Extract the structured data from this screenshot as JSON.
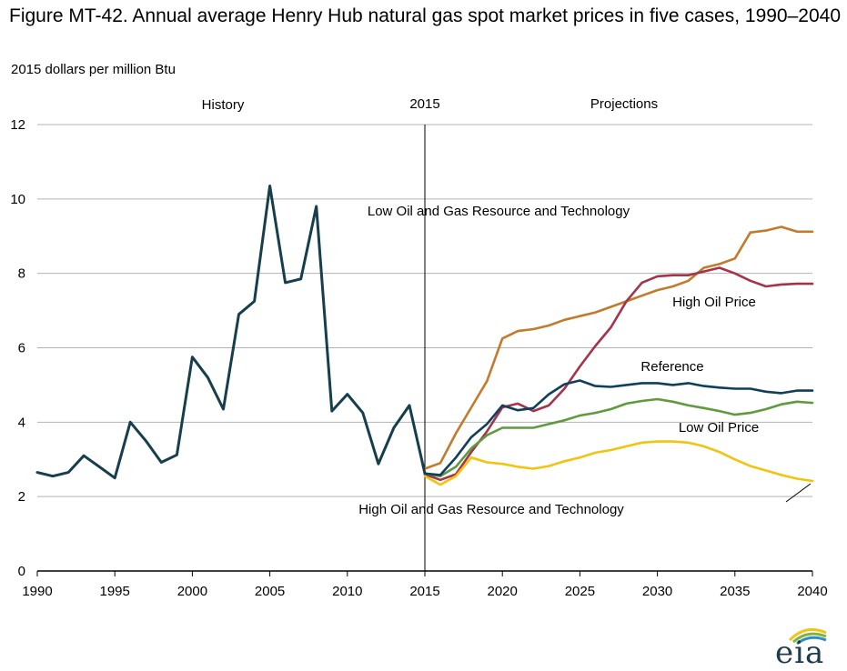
{
  "chart_data": {
    "type": "line",
    "title": "Figure MT-42. Annual average Henry Hub natural gas spot market prices in five cases, 1990–2040",
    "ylabel": "2015 dollars per million Btu",
    "xlabel": "",
    "xlim": [
      1990,
      2040
    ],
    "ylim": [
      0,
      12
    ],
    "x_ticks": [
      "1990",
      "1995",
      "2000",
      "2005",
      "2010",
      "2015",
      "2020",
      "2025",
      "2030",
      "2035",
      "2040"
    ],
    "y_ticks": [
      "0",
      "2",
      "4",
      "6",
      "8",
      "10",
      "12"
    ],
    "grid": true,
    "divider_year": 2015,
    "annotations": {
      "history": "History",
      "year": "2015",
      "projections": "Projections"
    },
    "series": [
      {
        "name": "History",
        "color": "#163e4d",
        "x": [
          1990,
          1991,
          1992,
          1993,
          1994,
          1995,
          1996,
          1997,
          1998,
          1999,
          2000,
          2001,
          2002,
          2003,
          2004,
          2005,
          2006,
          2007,
          2008,
          2009,
          2010,
          2011,
          2012,
          2013,
          2014,
          2015
        ],
        "values": [
          2.65,
          2.55,
          2.65,
          3.1,
          2.8,
          2.5,
          4.0,
          3.5,
          2.92,
          3.12,
          5.75,
          5.2,
          4.35,
          6.9,
          7.25,
          10.35,
          7.75,
          7.85,
          9.8,
          4.3,
          4.75,
          4.25,
          2.88,
          3.85,
          4.45,
          2.62
        ],
        "label": ""
      },
      {
        "name": "Low Oil and Gas Resource and Technology",
        "color": "#c27b2b",
        "x": [
          2015,
          2016,
          2017,
          2018,
          2019,
          2020,
          2021,
          2022,
          2023,
          2024,
          2025,
          2026,
          2027,
          2028,
          2029,
          2030,
          2031,
          2032,
          2033,
          2034,
          2035,
          2036,
          2037,
          2038,
          2039,
          2040
        ],
        "values": [
          2.75,
          2.9,
          3.7,
          4.4,
          5.1,
          6.25,
          6.45,
          6.5,
          6.6,
          6.75,
          6.85,
          6.95,
          7.1,
          7.25,
          7.4,
          7.55,
          7.65,
          7.8,
          8.15,
          8.25,
          8.4,
          9.1,
          9.15,
          9.25,
          9.12,
          9.12
        ],
        "label": "Low Oil and Gas Resource and Technology"
      },
      {
        "name": "High Oil Price",
        "color": "#a3344a",
        "x": [
          2015,
          2016,
          2017,
          2018,
          2019,
          2020,
          2021,
          2022,
          2023,
          2024,
          2025,
          2026,
          2027,
          2028,
          2029,
          2030,
          2031,
          2032,
          2033,
          2034,
          2035,
          2036,
          2037,
          2038,
          2039,
          2040
        ],
        "values": [
          2.6,
          2.45,
          2.6,
          3.2,
          3.75,
          4.4,
          4.5,
          4.3,
          4.45,
          4.9,
          5.5,
          6.05,
          6.55,
          7.25,
          7.75,
          7.92,
          7.95,
          7.95,
          8.05,
          8.15,
          8.0,
          7.8,
          7.65,
          7.7,
          7.72,
          7.72
        ],
        "label": "High Oil Price"
      },
      {
        "name": "Reference",
        "color": "#0f3f5c",
        "x": [
          2015,
          2016,
          2017,
          2018,
          2019,
          2020,
          2021,
          2022,
          2023,
          2024,
          2025,
          2026,
          2027,
          2028,
          2029,
          2030,
          2031,
          2032,
          2033,
          2034,
          2035,
          2036,
          2037,
          2038,
          2039,
          2040
        ],
        "values": [
          2.62,
          2.58,
          3.05,
          3.6,
          3.95,
          4.45,
          4.32,
          4.38,
          4.75,
          5.02,
          5.12,
          4.97,
          4.95,
          5.0,
          5.05,
          5.05,
          5.0,
          5.05,
          4.97,
          4.93,
          4.9,
          4.9,
          4.82,
          4.78,
          4.85,
          4.85
        ],
        "label": "Reference"
      },
      {
        "name": "Low Oil Price",
        "color": "#5f9a3d",
        "x": [
          2015,
          2016,
          2017,
          2018,
          2019,
          2020,
          2021,
          2022,
          2023,
          2024,
          2025,
          2026,
          2027,
          2028,
          2029,
          2030,
          2031,
          2032,
          2033,
          2034,
          2035,
          2036,
          2037,
          2038,
          2039,
          2040
        ],
        "values": [
          2.62,
          2.55,
          2.8,
          3.3,
          3.65,
          3.85,
          3.85,
          3.85,
          3.95,
          4.05,
          4.18,
          4.25,
          4.35,
          4.5,
          4.57,
          4.62,
          4.55,
          4.45,
          4.38,
          4.3,
          4.2,
          4.25,
          4.35,
          4.48,
          4.55,
          4.52
        ],
        "label": "Low Oil Price"
      },
      {
        "name": "High Oil and Gas Resource and Technology",
        "color": "#f2c40f",
        "x": [
          2015,
          2016,
          2017,
          2018,
          2019,
          2020,
          2021,
          2022,
          2023,
          2024,
          2025,
          2026,
          2027,
          2028,
          2029,
          2030,
          2031,
          2032,
          2033,
          2034,
          2035,
          2036,
          2037,
          2038,
          2039,
          2040
        ],
        "values": [
          2.55,
          2.32,
          2.55,
          3.05,
          2.92,
          2.88,
          2.8,
          2.75,
          2.82,
          2.95,
          3.05,
          3.18,
          3.25,
          3.35,
          3.45,
          3.48,
          3.48,
          3.45,
          3.35,
          3.2,
          3.0,
          2.82,
          2.7,
          2.58,
          2.48,
          2.42
        ],
        "label": "High Oil and Gas Resource and Technology"
      }
    ]
  },
  "logo": {
    "text": "eia"
  }
}
